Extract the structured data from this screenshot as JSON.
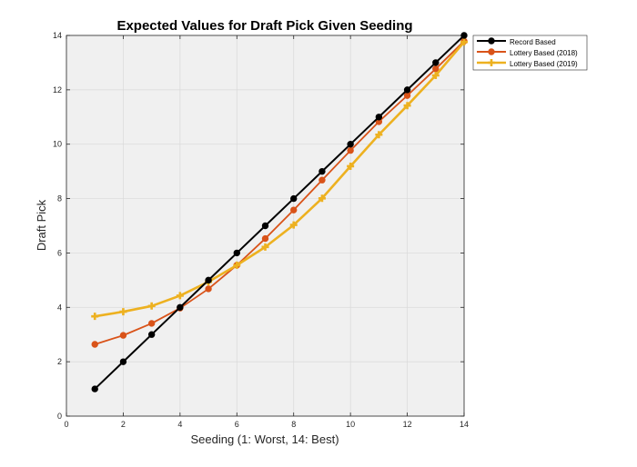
{
  "chart_data": {
    "type": "line",
    "title": "Expected Values for Draft Pick Given Seeding",
    "xlabel": "Seeding (1: Worst, 14: Best)",
    "ylabel": "Draft Pick",
    "xlim": [
      0,
      14
    ],
    "ylim": [
      0,
      14
    ],
    "xticks": [
      0,
      2,
      4,
      6,
      8,
      10,
      12,
      14
    ],
    "yticks": [
      0,
      2,
      4,
      6,
      8,
      10,
      12,
      14
    ],
    "grid": true,
    "legend_position": "outside top-right",
    "x": [
      1,
      2,
      3,
      4,
      5,
      6,
      7,
      8,
      9,
      10,
      11,
      12,
      13,
      14
    ],
    "series": [
      {
        "name": "Record Based",
        "color": "#000000",
        "marker": "circle",
        "values": [
          1,
          2,
          3,
          4,
          5,
          6,
          7,
          8,
          9,
          10,
          11,
          12,
          13,
          14
        ]
      },
      {
        "name": "Lottery Based (2018)",
        "color": "#D95319",
        "marker": "circle",
        "values": [
          2.64,
          2.97,
          3.41,
          3.97,
          4.68,
          5.55,
          6.53,
          7.58,
          8.68,
          9.77,
          10.83,
          11.79,
          12.77,
          13.79
        ]
      },
      {
        "name": "Lottery Based (2019)",
        "color": "#EDB120",
        "marker": "plus",
        "values": [
          3.67,
          3.84,
          4.05,
          4.43,
          4.94,
          5.55,
          6.22,
          7.03,
          8.01,
          9.19,
          10.35,
          11.42,
          12.53,
          13.76
        ]
      }
    ]
  }
}
